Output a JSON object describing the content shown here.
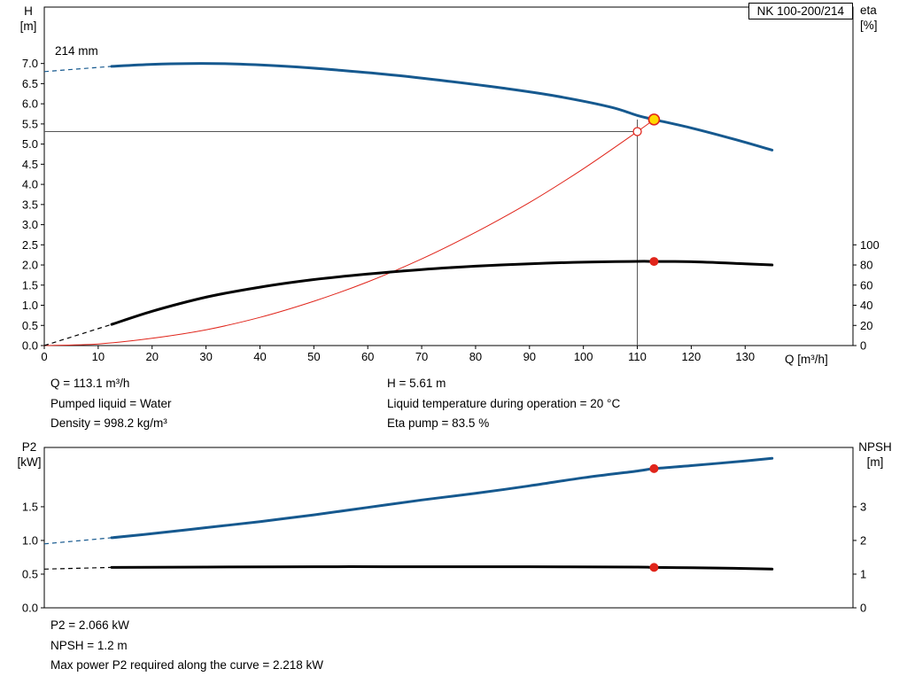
{
  "title_box": {
    "model": "NK 100-200/214"
  },
  "labels": {
    "h_title": "H",
    "h_unit": "[m]",
    "eta_title": "eta",
    "eta_unit": "[%]",
    "q_axis": "Q [m³/h]",
    "impeller": "214 mm",
    "p2_title": "P2",
    "p2_unit": "[kW]",
    "npsh_title": "NPSH",
    "npsh_unit": "[m]"
  },
  "info": {
    "q": "Q = 113.1 m³/h",
    "h": "H = 5.61 m",
    "liquid": "Pumped liquid = Water",
    "temp": "Liquid temperature during operation = 20 °C",
    "density": "Density = 998.2 kg/m³",
    "eta": "Eta pump = 83.5 %"
  },
  "results": {
    "p2": "P2 = 2.066 kW",
    "npsh": "NPSH = 1.2 m",
    "maxp": "Max power P2 required along the curve = 2.218 kW"
  },
  "colors": {
    "curve_blue": "#16598f",
    "curve_black": "#000000",
    "system_red": "#e0251b",
    "duty_yellow": "#ffd800",
    "ref_gray": "#555555"
  },
  "chart_data": [
    {
      "type": "line",
      "name": "qh-eta-chart",
      "x": {
        "label": "Q [m³/h]",
        "min": 0,
        "max": 150,
        "ticks": [
          0,
          10,
          20,
          30,
          40,
          50,
          60,
          70,
          80,
          90,
          100,
          110,
          120,
          130
        ]
      },
      "y_left": {
        "label": "H [m]",
        "min": 0,
        "max": 8.4,
        "decimals": 1,
        "ticks": [
          0,
          0.5,
          1,
          1.5,
          2,
          2.5,
          3,
          3.5,
          4,
          4.5,
          5,
          5.5,
          6,
          6.5,
          7
        ]
      },
      "y_right": {
        "label": "eta [%]",
        "left_per_unit": 0.025,
        "ticks": [
          0,
          20,
          40,
          60,
          80,
          100
        ]
      },
      "ref_lines": [
        {
          "type": "v",
          "x": 110,
          "to": 5.61
        },
        {
          "type": "h",
          "y": 5.31,
          "to": 110
        }
      ],
      "series": [
        {
          "name": "system-curve",
          "color": "#e0251b",
          "width": 1,
          "axis": "left",
          "points": [
            [
              0,
              0
            ],
            [
              10,
              0.04
            ],
            [
              20,
              0.18
            ],
            [
              30,
              0.39
            ],
            [
              40,
              0.7
            ],
            [
              50,
              1.1
            ],
            [
              60,
              1.58
            ],
            [
              70,
              2.15
            ],
            [
              80,
              2.81
            ],
            [
              90,
              3.55
            ],
            [
              100,
              4.39
            ],
            [
              110,
              5.31
            ],
            [
              113.5,
              5.65
            ]
          ]
        },
        {
          "name": "head-curve",
          "color": "#16598f",
          "width": 3,
          "axis": "left",
          "dash": [
            [
              0,
              6.8
            ],
            [
              12.5,
              6.93
            ]
          ],
          "points": [
            [
              12.5,
              6.93
            ],
            [
              20,
              6.98
            ],
            [
              27,
              7.0
            ],
            [
              35,
              6.99
            ],
            [
              45,
              6.93
            ],
            [
              55,
              6.83
            ],
            [
              65,
              6.71
            ],
            [
              75,
              6.56
            ],
            [
              85,
              6.39
            ],
            [
              95,
              6.19
            ],
            [
              105,
              5.92
            ],
            [
              110,
              5.71
            ],
            [
              113.1,
              5.61
            ],
            [
              120,
              5.4
            ],
            [
              128,
              5.12
            ],
            [
              135,
              4.85
            ]
          ]
        },
        {
          "name": "eta-curve",
          "color": "#000000",
          "width": 3,
          "axis": "right",
          "dash": [
            [
              0,
              0
            ],
            [
              12.5,
              21
            ]
          ],
          "points": [
            [
              12.5,
              21
            ],
            [
              20,
              34
            ],
            [
              30,
              48
            ],
            [
              40,
              58
            ],
            [
              50,
              65.5
            ],
            [
              60,
              71
            ],
            [
              70,
              75.5
            ],
            [
              80,
              78.8
            ],
            [
              90,
              81.2
            ],
            [
              100,
              82.8
            ],
            [
              110,
              83.6
            ],
            [
              113.1,
              83.5
            ],
            [
              120,
              83.2
            ],
            [
              130,
              81.2
            ],
            [
              135,
              80
            ]
          ]
        }
      ],
      "markers": [
        {
          "name": "requested-duty-point",
          "x": 110,
          "y": 5.31,
          "axis": "left",
          "r": 4.5,
          "fill": "#ffffff",
          "stroke": "#e0251b",
          "sw": 1.3
        },
        {
          "name": "duty-point",
          "x": 113.1,
          "y": 5.61,
          "axis": "left",
          "r": 6,
          "fill": "#ffd800",
          "stroke": "#e0251b",
          "sw": 1.6
        },
        {
          "name": "eta-duty-point",
          "x": 113.1,
          "y": 83.5,
          "axis": "right",
          "r": 5,
          "fill": "#e0251b"
        }
      ]
    },
    {
      "type": "line",
      "name": "p2-npsh-chart",
      "x": {
        "label": "Q [m³/h]",
        "min": 0,
        "max": 150,
        "ticks": []
      },
      "y_left": {
        "label": "P2 [kW]",
        "min": 0,
        "max": 2.38,
        "decimals": 1,
        "ticks": [
          0,
          0.5,
          1,
          1.5
        ]
      },
      "y_right": {
        "label": "NPSH [m]",
        "left_per_unit": 0.5,
        "ticks": [
          0,
          1,
          2,
          3
        ]
      },
      "ref_lines": [],
      "series": [
        {
          "name": "p2-curve",
          "color": "#16598f",
          "width": 3,
          "axis": "left",
          "dash": [
            [
              0,
              0.95
            ],
            [
              12.5,
              1.04
            ]
          ],
          "points": [
            [
              12.5,
              1.04
            ],
            [
              20,
              1.1
            ],
            [
              30,
              1.19
            ],
            [
              40,
              1.28
            ],
            [
              50,
              1.38
            ],
            [
              60,
              1.49
            ],
            [
              70,
              1.6
            ],
            [
              80,
              1.7
            ],
            [
              90,
              1.81
            ],
            [
              100,
              1.93
            ],
            [
              110,
              2.03
            ],
            [
              113.1,
              2.066
            ],
            [
              120,
              2.11
            ],
            [
              130,
              2.18
            ],
            [
              135,
              2.218
            ]
          ]
        },
        {
          "name": "npsh-curve",
          "color": "#000000",
          "width": 3,
          "axis": "right",
          "dash": [
            [
              0,
              1.15
            ],
            [
              12.5,
              1.2
            ]
          ],
          "points": [
            [
              12.5,
              1.2
            ],
            [
              30,
              1.21
            ],
            [
              50,
              1.22
            ],
            [
              70,
              1.22
            ],
            [
              90,
              1.22
            ],
            [
              110,
              1.21
            ],
            [
              113.1,
              1.2
            ],
            [
              125,
              1.18
            ],
            [
              135,
              1.15
            ]
          ]
        }
      ],
      "markers": [
        {
          "name": "p2-duty-point",
          "x": 113.1,
          "y": 2.066,
          "axis": "left",
          "r": 5,
          "fill": "#e0251b"
        },
        {
          "name": "npsh-duty-point",
          "x": 113.1,
          "y": 1.2,
          "axis": "right",
          "r": 5,
          "fill": "#e0251b"
        }
      ]
    }
  ]
}
